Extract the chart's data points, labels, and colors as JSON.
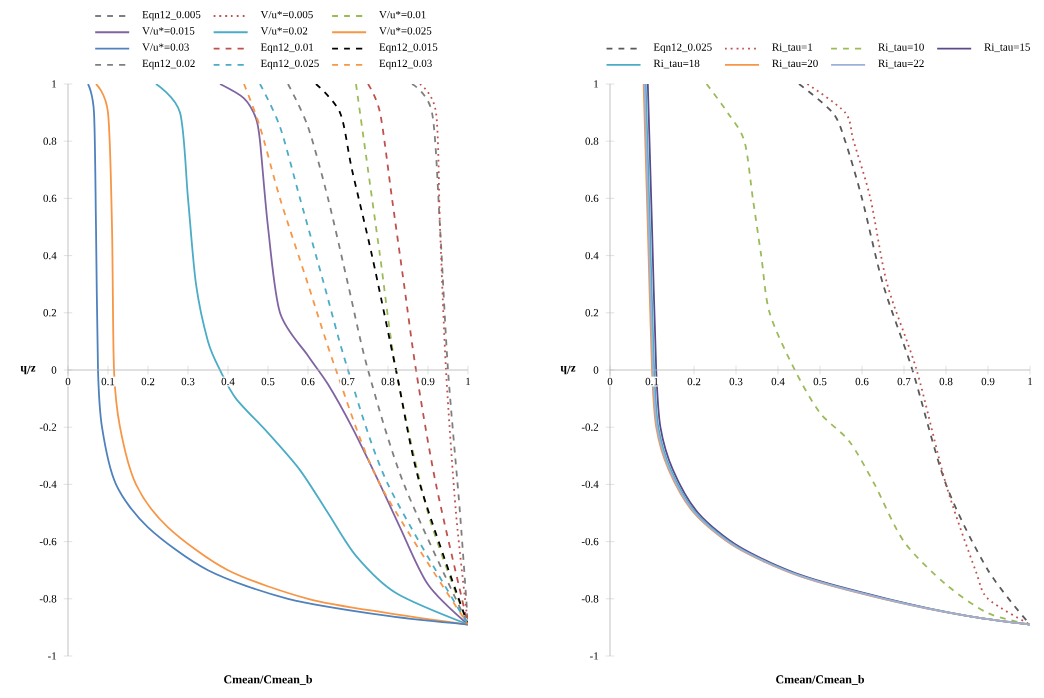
{
  "chart_data": [
    {
      "type": "line",
      "xlabel": "Cmean/Cmean_b",
      "ylabel": "z/h",
      "xlim": [
        0,
        1
      ],
      "ylim": [
        -1,
        1
      ],
      "xticks": [
        0,
        0.1,
        0.2,
        0.3,
        0.4,
        0.5,
        0.6,
        0.7,
        0.8,
        0.9,
        1
      ],
      "yticks": [
        -1,
        -0.8,
        -0.6,
        -0.4,
        -0.2,
        0,
        0.2,
        0.4,
        0.6,
        0.8,
        1
      ],
      "legend": "top",
      "series": [
        {
          "name": "Eqn12_0.005",
          "color": "#7f7f7f",
          "line_style": "dashed",
          "x": [
            0.86,
            0.91,
            0.93,
            0.95,
            0.98,
            1
          ],
          "values": [
            1,
            0.9,
            0.5,
            0,
            -0.5,
            -0.89
          ]
        },
        {
          "name": "V/u*=0.005",
          "color": "#c0504d",
          "line_style": "dotted",
          "x": [
            0.88,
            0.92,
            0.93,
            0.945,
            0.97,
            1
          ],
          "values": [
            1,
            0.9,
            0.5,
            0,
            -0.5,
            -0.89
          ]
        },
        {
          "name": "V/u*=0.01",
          "color": "#9bbb59",
          "line_style": "dashed",
          "x": [
            0.72,
            0.74,
            0.78,
            0.82,
            0.9,
            1
          ],
          "values": [
            1,
            0.8,
            0.4,
            0,
            -0.5,
            -0.89
          ]
        },
        {
          "name": "V/u*=0.015",
          "color": "#8064a2",
          "line_style": "solid",
          "x": [
            0.38,
            0.44,
            0.47,
            0.48,
            0.5,
            0.53,
            0.6,
            0.65,
            0.71,
            0.78,
            0.83,
            0.9,
            1
          ],
          "values": [
            1,
            0.95,
            0.88,
            0.8,
            0.5,
            0.2,
            0.05,
            -0.05,
            -0.2,
            -0.4,
            -0.55,
            -0.75,
            -0.89
          ]
        },
        {
          "name": "V/u*=0.02",
          "color": "#4bacc6",
          "line_style": "solid",
          "x": [
            0.22,
            0.28,
            0.3,
            0.32,
            0.35,
            0.38,
            0.42,
            0.5,
            0.58,
            0.65,
            0.72,
            0.82,
            1
          ],
          "values": [
            1,
            0.9,
            0.6,
            0.3,
            0.1,
            0,
            -0.1,
            -0.22,
            -0.35,
            -0.5,
            -0.65,
            -0.78,
            -0.89
          ]
        },
        {
          "name": "V/u*=0.025",
          "color": "#f79646",
          "line_style": "solid",
          "x": [
            0.07,
            0.1,
            0.11,
            0.115,
            0.13,
            0.17,
            0.25,
            0.4,
            0.6,
            0.8,
            1
          ],
          "values": [
            1,
            0.9,
            0.5,
            0,
            -0.2,
            -0.4,
            -0.55,
            -0.7,
            -0.8,
            -0.85,
            -0.89
          ]
        },
        {
          "name": "V/u*=0.03",
          "color": "#4f81bd",
          "line_style": "solid",
          "x": [
            0.05,
            0.065,
            0.07,
            0.075,
            0.085,
            0.12,
            0.2,
            0.35,
            0.55,
            0.8,
            1
          ],
          "values": [
            1,
            0.9,
            0.5,
            0,
            -0.2,
            -0.4,
            -0.55,
            -0.7,
            -0.8,
            -0.86,
            -0.89
          ]
        },
        {
          "name": "Eqn12_0.01",
          "color": "#c0504d",
          "line_style": "dashed",
          "x": [
            0.75,
            0.78,
            0.81,
            0.84,
            0.87,
            0.92,
            1
          ],
          "values": [
            1,
            0.9,
            0.6,
            0.3,
            0,
            -0.4,
            -0.89
          ]
        },
        {
          "name": "Eqn12_0.015",
          "color": "#000000",
          "line_style": "dashed",
          "x": [
            0.62,
            0.68,
            0.71,
            0.76,
            0.82,
            0.88,
            1
          ],
          "values": [
            1,
            0.9,
            0.7,
            0.4,
            0,
            -0.4,
            -0.89
          ]
        },
        {
          "name": "Eqn12_0.02",
          "color": "#7f7f7f",
          "line_style": "dashed",
          "x": [
            0.55,
            0.6,
            0.65,
            0.7,
            0.75,
            0.84,
            1
          ],
          "values": [
            1,
            0.85,
            0.6,
            0.3,
            0,
            -0.4,
            -0.89
          ]
        },
        {
          "name": "Eqn12_0.025",
          "color": "#4bacc6",
          "line_style": "dashed",
          "x": [
            0.48,
            0.53,
            0.58,
            0.64,
            0.7,
            0.8,
            1
          ],
          "values": [
            1,
            0.85,
            0.6,
            0.3,
            0,
            -0.4,
            -0.89
          ]
        },
        {
          "name": "Eqn12_0.03",
          "color": "#f79646",
          "line_style": "dashed",
          "x": [
            0.44,
            0.48,
            0.53,
            0.6,
            0.67,
            0.78,
            1
          ],
          "values": [
            1,
            0.85,
            0.6,
            0.3,
            0,
            -0.4,
            -0.89
          ]
        }
      ]
    },
    {
      "type": "line",
      "xlabel": "Cmean/Cmean_b",
      "ylabel": "z/h",
      "xlim": [
        0,
        1
      ],
      "ylim": [
        -1,
        1
      ],
      "xticks": [
        0,
        0.1,
        0.2,
        0.3,
        0.4,
        0.5,
        0.6,
        0.7,
        0.8,
        0.9,
        1
      ],
      "yticks": [
        -1,
        -0.8,
        -0.6,
        -0.4,
        -0.2,
        0,
        0.2,
        0.4,
        0.6,
        0.8,
        1
      ],
      "legend": "top",
      "series": [
        {
          "name": "Eqn12_0.025",
          "color": "#595959",
          "line_style": "dashed",
          "x": [
            0.45,
            0.53,
            0.56,
            0.6,
            0.65,
            0.72,
            0.8,
            0.9,
            1
          ],
          "values": [
            1,
            0.9,
            0.8,
            0.6,
            0.3,
            0,
            -0.4,
            -0.7,
            -0.89
          ]
        },
        {
          "name": "Ri_tau=1",
          "color": "#c0504d",
          "line_style": "dotted",
          "x": [
            0.47,
            0.56,
            0.58,
            0.62,
            0.66,
            0.73,
            0.8,
            0.87,
            0.9,
            1
          ],
          "values": [
            1,
            0.9,
            0.8,
            0.6,
            0.3,
            0,
            -0.4,
            -0.7,
            -0.8,
            -0.89
          ]
        },
        {
          "name": "Ri_tau=10",
          "color": "#9bbb59",
          "line_style": "dashed",
          "x": [
            0.23,
            0.28,
            0.32,
            0.34,
            0.36,
            0.38,
            0.44,
            0.5,
            0.57,
            0.63,
            0.7,
            0.8,
            0.9,
            1
          ],
          "values": [
            1,
            0.9,
            0.8,
            0.6,
            0.4,
            0.2,
            0,
            -0.15,
            -0.25,
            -0.4,
            -0.6,
            -0.75,
            -0.85,
            -0.89
          ]
        },
        {
          "name": "Ri_tau=15",
          "color": "#5b4a8b",
          "line_style": "solid",
          "x": [
            0.09,
            0.1,
            0.11,
            0.12,
            0.15,
            0.21,
            0.31,
            0.46,
            0.66,
            0.85,
            1
          ],
          "values": [
            1,
            0.5,
            0,
            -0.2,
            -0.35,
            -0.5,
            -0.62,
            -0.72,
            -0.8,
            -0.86,
            -0.89
          ]
        },
        {
          "name": "Ri_tau=18",
          "color": "#4bacc6",
          "line_style": "solid",
          "x": [
            0.085,
            0.095,
            0.105,
            0.115,
            0.145,
            0.205,
            0.305,
            0.455,
            0.655,
            0.85,
            1
          ],
          "values": [
            1,
            0.5,
            0,
            -0.2,
            -0.35,
            -0.5,
            -0.62,
            -0.72,
            -0.8,
            -0.86,
            -0.89
          ]
        },
        {
          "name": "Ri_tau=20",
          "color": "#f79646",
          "line_style": "solid",
          "x": [
            0.08,
            0.09,
            0.1,
            0.11,
            0.14,
            0.2,
            0.3,
            0.45,
            0.65,
            0.85,
            1
          ],
          "values": [
            1,
            0.5,
            0,
            -0.2,
            -0.35,
            -0.5,
            -0.62,
            -0.72,
            -0.8,
            -0.86,
            -0.89
          ]
        },
        {
          "name": "Ri_tau=22",
          "color": "#9cb0d8",
          "line_style": "solid",
          "x": [
            0.082,
            0.092,
            0.102,
            0.112,
            0.142,
            0.202,
            0.302,
            0.452,
            0.652,
            0.85,
            1
          ],
          "values": [
            1,
            0.5,
            0,
            -0.2,
            -0.35,
            -0.5,
            -0.62,
            -0.72,
            -0.8,
            -0.86,
            -0.89
          ]
        }
      ]
    }
  ]
}
